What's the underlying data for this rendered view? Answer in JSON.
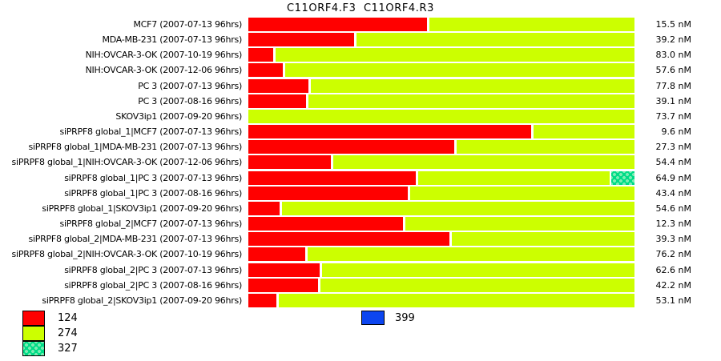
{
  "title": "C11ORF4.F3  C11ORF4.R3",
  "colors": {
    "red": "#FF0000",
    "green": "#CCFF00",
    "pattern_base": "#00DC87",
    "pattern_dot": "#79EDB2",
    "blue": "#0C45F0",
    "background": "#FFFFFF",
    "text": "#000000"
  },
  "chart_data": {
    "type": "bar",
    "orientation": "horizontal-stacked",
    "title": "C11ORF4.F3  C11ORF4.R3",
    "unit": "nM",
    "grid": false,
    "legend_position": "bottom-left",
    "series_note": "Each row is a full-width bar split into a red segment (share shown as red_pct of bar width), a chartreuse remainder, and for one row a dotted teal end segment (pattern_pct). Right column lists the measured value in nM.",
    "rows": [
      {
        "label": "MCF7 (2007-07-13 96hrs)",
        "value_nm": 15.5,
        "red_pct": 46.3,
        "pattern_pct": 0
      },
      {
        "label": "MDA-MB-231 (2007-07-13 96hrs)",
        "value_nm": 39.2,
        "red_pct": 27.4,
        "pattern_pct": 0
      },
      {
        "label": "NIH:OVCAR-3-OK (2007-10-19 96hrs)",
        "value_nm": 83.0,
        "red_pct": 6.4,
        "pattern_pct": 0
      },
      {
        "label": "NIH:OVCAR-3-OK (2007-12-06 96hrs)",
        "value_nm": 57.6,
        "red_pct": 8.9,
        "pattern_pct": 0
      },
      {
        "label": "PC 3 (2007-07-13 96hrs)",
        "value_nm": 77.8,
        "red_pct": 15.6,
        "pattern_pct": 0
      },
      {
        "label": "PC 3 (2007-08-16 96hrs)",
        "value_nm": 39.1,
        "red_pct": 14.9,
        "pattern_pct": 0
      },
      {
        "label": "SKOV3ip1 (2007-09-20 96hrs)",
        "value_nm": 73.7,
        "red_pct": 0,
        "pattern_pct": 0
      },
      {
        "label": "siPRPF8 global_1|MCF7 (2007-07-13 96hrs)",
        "value_nm": 9.6,
        "red_pct": 73.2,
        "pattern_pct": 0
      },
      {
        "label": "siPRPF8 global_1|MDA-MB-231 (2007-07-13 96hrs)",
        "value_nm": 27.3,
        "red_pct": 53.3,
        "pattern_pct": 0
      },
      {
        "label": "siPRPF8 global_1|NIH:OVCAR-3-OK (2007-12-06 96hrs)",
        "value_nm": 54.4,
        "red_pct": 21.4,
        "pattern_pct": 0
      },
      {
        "label": "siPRPF8 global_1|PC 3 (2007-07-13 96hrs)",
        "value_nm": 64.9,
        "red_pct": 43.4,
        "pattern_pct": 6.0
      },
      {
        "label": "siPRPF8 global_1|PC 3 (2007-08-16 96hrs)",
        "value_nm": 43.4,
        "red_pct": 41.3,
        "pattern_pct": 0
      },
      {
        "label": "siPRPF8 global_1|SKOV3ip1 (2007-09-20 96hrs)",
        "value_nm": 54.6,
        "red_pct": 8.1,
        "pattern_pct": 0
      },
      {
        "label": "siPRPF8 global_2|MCF7 (2007-07-13 96hrs)",
        "value_nm": 12.3,
        "red_pct": 40.0,
        "pattern_pct": 0
      },
      {
        "label": "siPRPF8 global_2|MDA-MB-231 (2007-07-13 96hrs)",
        "value_nm": 39.3,
        "red_pct": 52.1,
        "pattern_pct": 0
      },
      {
        "label": "siPRPF8 global_2|NIH:OVCAR-3-OK (2007-10-19 96hrs)",
        "value_nm": 76.2,
        "red_pct": 14.7,
        "pattern_pct": 0
      },
      {
        "label": "siPRPF8 global_2|PC 3 (2007-07-13 96hrs)",
        "value_nm": 62.6,
        "red_pct": 18.5,
        "pattern_pct": 0
      },
      {
        "label": "siPRPF8 global_2|PC 3 (2007-08-16 96hrs)",
        "value_nm": 42.2,
        "red_pct": 18.0,
        "pattern_pct": 0
      },
      {
        "label": "siPRPF8 global_2|SKOV3ip1 (2007-09-20 96hrs)",
        "value_nm": 53.1,
        "red_pct": 7.3,
        "pattern_pct": 0
      }
    ],
    "legend": [
      {
        "label": "124",
        "swatch": "red"
      },
      {
        "label": "274",
        "swatch": "green"
      },
      {
        "label": "327",
        "swatch": "teal-dot-pattern"
      },
      {
        "label": "399",
        "swatch": "blue"
      }
    ]
  }
}
